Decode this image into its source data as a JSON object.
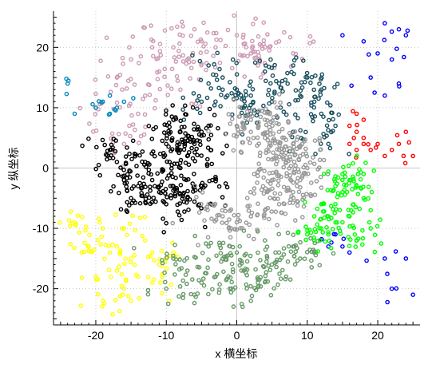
{
  "chart_data": {
    "type": "scatter",
    "title": "",
    "xlabel": "x 横坐标",
    "ylabel": "y 纵坐标",
    "xlim": [
      -26,
      26
    ],
    "ylim": [
      -26,
      26
    ],
    "x_ticks": [
      -20,
      -10,
      0,
      10,
      20
    ],
    "y_ticks": [
      -20,
      -10,
      0,
      10,
      20
    ],
    "grid": "dotted",
    "legend": "none",
    "series": [
      {
        "color": "#cc99b3",
        "center": [
          -4,
          9
        ],
        "spread": [
          12,
          12
        ],
        "count": 200,
        "points": [
          [
            -17,
            15
          ],
          [
            -15,
            18
          ],
          [
            -13,
            12
          ],
          [
            -11,
            16
          ],
          [
            -9,
            20
          ],
          [
            -7,
            18
          ],
          [
            -5,
            21
          ],
          [
            -3,
            20
          ],
          [
            0,
            22
          ],
          [
            2,
            19
          ],
          [
            4,
            20
          ],
          [
            6,
            21
          ],
          [
            8,
            19
          ],
          [
            -20,
            10
          ],
          [
            -14,
            9
          ],
          [
            -16,
            4
          ],
          [
            -8,
            13
          ],
          [
            -12,
            20
          ],
          [
            -6,
            23
          ],
          [
            3,
            17
          ]
        ]
      },
      {
        "color": "#1a4f5f",
        "center": [
          10,
          14
        ],
        "spread": [
          7,
          9
        ],
        "count": 180,
        "points": [
          [
            -4,
            17
          ],
          [
            -2,
            15
          ],
          [
            0,
            13
          ],
          [
            2,
            12
          ],
          [
            4,
            16
          ],
          [
            6,
            14
          ],
          [
            8,
            17
          ],
          [
            10,
            15
          ],
          [
            12,
            13
          ],
          [
            12,
            9
          ],
          [
            14,
            7
          ],
          [
            11,
            11
          ],
          [
            9,
            12
          ],
          [
            5,
            11
          ],
          [
            -2,
            13
          ],
          [
            2,
            9
          ],
          [
            8,
            6
          ],
          [
            13,
            4
          ],
          [
            -5,
            11
          ],
          [
            1,
            10
          ]
        ]
      },
      {
        "color": "#0088bb",
        "center": [
          -22,
          10
        ],
        "spread": [
          3,
          4
        ],
        "count": 18,
        "points": [
          [
            -24,
            14
          ],
          [
            -23,
            9
          ],
          [
            -20,
            10
          ],
          [
            -18,
            12
          ],
          [
            -19,
            11
          ],
          [
            -17,
            10
          ],
          [
            -16,
            11
          ],
          [
            -18,
            9
          ]
        ]
      },
      {
        "color": "#0000ff",
        "center": [
          20,
          12
        ],
        "spread": [
          6,
          12
        ],
        "count": 40,
        "points": [
          [
            15,
            22
          ],
          [
            18,
            21
          ],
          [
            20,
            19
          ],
          [
            21,
            24
          ],
          [
            23,
            23
          ],
          [
            24,
            22
          ],
          [
            22,
            18
          ],
          [
            19,
            15
          ],
          [
            21,
            12
          ],
          [
            23,
            14
          ],
          [
            15,
            -13
          ],
          [
            17,
            -12
          ],
          [
            21,
            -15
          ],
          [
            24,
            -15
          ],
          [
            22,
            -20
          ],
          [
            25,
            -21
          ],
          [
            13,
            -13
          ],
          [
            11,
            -14
          ],
          [
            14,
            -11
          ],
          [
            16,
            -14
          ]
        ]
      },
      {
        "color": "#ff0000",
        "center": [
          19,
          6
        ],
        "spread": [
          5,
          5
        ],
        "count": 25,
        "points": [
          [
            17,
            9
          ],
          [
            18,
            8
          ],
          [
            17,
            6
          ],
          [
            16,
            4
          ],
          [
            17,
            3
          ],
          [
            18,
            5
          ],
          [
            19,
            3
          ],
          [
            21,
            2
          ],
          [
            22,
            3
          ],
          [
            23,
            4
          ],
          [
            24,
            6
          ],
          [
            25,
            2
          ],
          [
            16,
            7
          ],
          [
            18,
            4
          ],
          [
            20,
            4
          ]
        ]
      },
      {
        "color": "#000000",
        "center": [
          -10,
          2
        ],
        "spread": [
          10,
          9
        ],
        "count": 320,
        "points": [
          [
            -18,
            3
          ],
          [
            -17,
            1
          ],
          [
            -16,
            -2
          ],
          [
            -15,
            -5
          ],
          [
            -14,
            -3
          ],
          [
            -13,
            1
          ],
          [
            -12,
            -2
          ],
          [
            -11,
            -4
          ],
          [
            -10,
            -6
          ],
          [
            -9,
            -3
          ],
          [
            -8,
            0
          ],
          [
            -7,
            2
          ],
          [
            -6,
            4
          ],
          [
            -5,
            6
          ],
          [
            -4,
            7
          ],
          [
            -9,
            8
          ],
          [
            -8,
            6
          ],
          [
            -10,
            4
          ],
          [
            -7,
            -5
          ],
          [
            -5,
            -3
          ]
        ]
      },
      {
        "color": "#999999",
        "center": [
          4,
          0
        ],
        "spread": [
          10,
          10
        ],
        "count": 340,
        "points": [
          [
            -4,
            -6
          ],
          [
            -2,
            -8
          ],
          [
            0,
            -9
          ],
          [
            2,
            -8
          ],
          [
            4,
            -7
          ],
          [
            6,
            -6
          ],
          [
            8,
            -4
          ],
          [
            9,
            -2
          ],
          [
            10,
            0
          ],
          [
            9,
            2
          ],
          [
            8,
            4
          ],
          [
            6,
            6
          ],
          [
            4,
            8
          ],
          [
            2,
            8
          ],
          [
            0,
            7
          ],
          [
            2,
            6
          ],
          [
            4,
            5
          ],
          [
            6,
            3
          ],
          [
            7,
            1
          ],
          [
            5,
            -2
          ]
        ]
      },
      {
        "color": "#ffff00",
        "center": [
          -15,
          -12
        ],
        "spread": [
          8,
          8
        ],
        "count": 110,
        "points": [
          [
            -23,
            -9
          ],
          [
            -22,
            -14
          ],
          [
            -20,
            -18
          ],
          [
            -19,
            -22
          ],
          [
            -17,
            -13
          ],
          [
            -16,
            -10
          ],
          [
            -15,
            -15
          ],
          [
            -14,
            -18
          ],
          [
            -13,
            -12
          ],
          [
            -12,
            -14
          ],
          [
            -11,
            -16
          ],
          [
            -10,
            -15
          ],
          [
            -9,
            -14
          ],
          [
            -17,
            -17
          ],
          [
            -21,
            -13
          ],
          [
            -19,
            -10
          ],
          [
            -18,
            -14
          ],
          [
            -16,
            -20
          ],
          [
            -12,
            -19
          ],
          [
            -15,
            -22
          ]
        ]
      },
      {
        "color": "#669966",
        "center": [
          1,
          -17
        ],
        "spread": [
          12,
          6
        ],
        "count": 200,
        "points": [
          [
            -9,
            -15
          ],
          [
            -7,
            -17
          ],
          [
            -5,
            -19
          ],
          [
            -3,
            -18
          ],
          [
            -1,
            -20
          ],
          [
            1,
            -17
          ],
          [
            3,
            -19
          ],
          [
            5,
            -16
          ],
          [
            7,
            -18
          ],
          [
            9,
            -15
          ],
          [
            11,
            -14
          ],
          [
            -6,
            -21
          ],
          [
            2,
            -22
          ],
          [
            -2,
            -15
          ],
          [
            6,
            -14
          ],
          [
            -10,
            -20
          ],
          [
            8,
            -13
          ],
          [
            4,
            -12
          ],
          [
            -4,
            -13
          ],
          [
            0,
            -14
          ]
        ]
      },
      {
        "color": "#00ff00",
        "center": [
          14,
          -7
        ],
        "spread": [
          6,
          8
        ],
        "count": 140,
        "points": [
          [
            11,
            -12
          ],
          [
            12,
            -10
          ],
          [
            13,
            -8
          ],
          [
            14,
            -6
          ],
          [
            15,
            -4
          ],
          [
            16,
            -2
          ],
          [
            17,
            -3
          ],
          [
            18,
            -5
          ],
          [
            19,
            -7
          ],
          [
            15,
            -9
          ],
          [
            13,
            -11
          ],
          [
            16,
            -8
          ],
          [
            14,
            -3
          ],
          [
            12,
            -6
          ],
          [
            18,
            -1
          ],
          [
            19,
            -10
          ],
          [
            17,
            -12
          ],
          [
            11,
            -8
          ],
          [
            10,
            -11
          ],
          [
            15,
            -1
          ]
        ]
      }
    ]
  }
}
